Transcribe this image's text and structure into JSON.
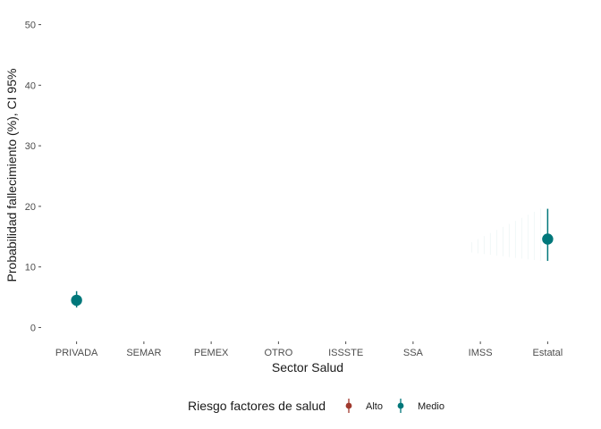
{
  "chart_data": {
    "type": "scatter",
    "subtype": "point-range",
    "xlabel": "Sector Salud",
    "ylabel": "Probabilidad fallecimiento (%), CI 95%",
    "categories": [
      "PRIVADA",
      "SEMAR",
      "PEMEX",
      "OTRO",
      "ISSSTE",
      "SSA",
      "IMSS",
      "Estatal"
    ],
    "ylim": [
      -2,
      52
    ],
    "yticks": [
      0,
      10,
      20,
      30,
      40,
      50
    ],
    "grid": false,
    "legend": {
      "title": "Riesgo factores de salud",
      "position": "bottom",
      "entries": [
        {
          "name": "Alto",
          "color": "#a0392e"
        },
        {
          "name": "Medio",
          "color": "#00777a"
        }
      ]
    },
    "series": [
      {
        "name": "Alto",
        "color": "#a0392e",
        "points": []
      },
      {
        "name": "Medio",
        "color": "#00777a",
        "points": [
          {
            "x": "PRIVADA",
            "y": 4.5,
            "lower": 3.3,
            "upper": 6.0
          },
          {
            "x": "Estatal",
            "y": 14.6,
            "lower": 11.0,
            "upper": 19.6
          }
        ]
      }
    ]
  }
}
